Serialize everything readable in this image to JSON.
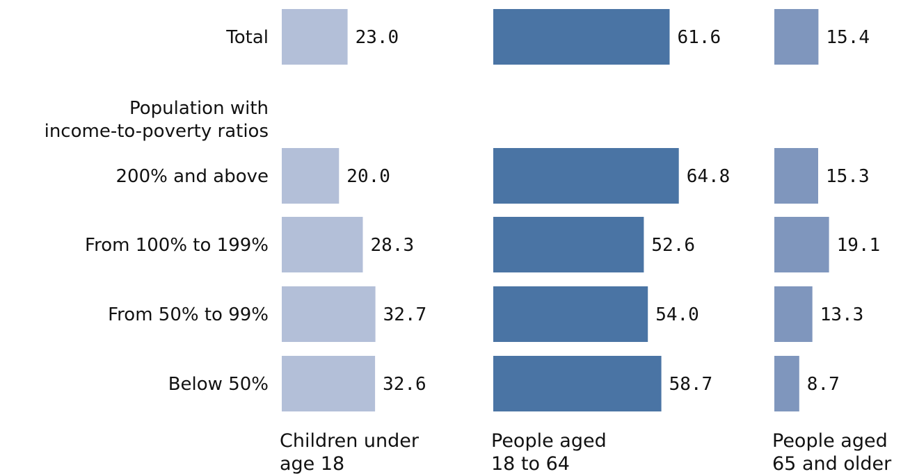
{
  "chart_data": {
    "type": "bar",
    "orientation": "horizontal",
    "layout": "small-multiples",
    "group_heading": [
      "Population with",
      "income-to-poverty ratios"
    ],
    "categories": [
      "Total",
      "200% and above",
      "From 100% to 199%",
      "From 50% to 99%",
      "Below 50%"
    ],
    "series": [
      {
        "name": [
          "Children under",
          "age 18"
        ],
        "values": [
          23.0,
          20.0,
          28.3,
          32.7,
          32.6
        ],
        "color": "#b3bfd8"
      },
      {
        "name": [
          "People aged",
          "18 to 64"
        ],
        "values": [
          61.6,
          64.8,
          52.6,
          54.0,
          58.7
        ],
        "color": "#4a74a4"
      },
      {
        "name": [
          "People aged",
          "65 and older"
        ],
        "values": [
          15.4,
          15.3,
          19.1,
          13.3,
          8.7
        ],
        "color": "#7f96bd"
      }
    ],
    "value_format": "0.0",
    "grid": false,
    "legend": "none"
  }
}
